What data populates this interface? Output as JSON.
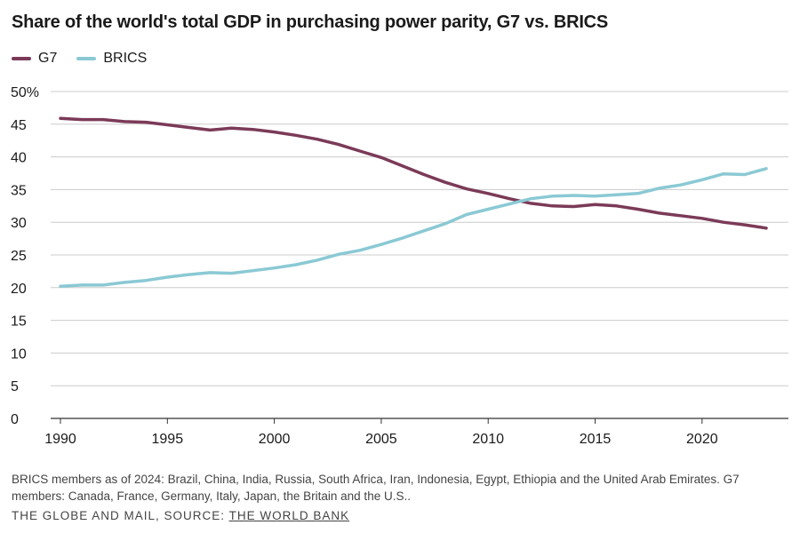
{
  "chart_data": {
    "type": "line",
    "title": "Share of the world's total GDP in purchasing power parity, G7 vs. BRICS",
    "xlabel": "",
    "ylabel": "",
    "xlim": [
      1990,
      2023
    ],
    "ylim": [
      0,
      50
    ],
    "x_ticks": [
      1990,
      1995,
      2000,
      2005,
      2010,
      2015,
      2020
    ],
    "y_ticks": [
      0,
      5,
      10,
      15,
      20,
      25,
      30,
      35,
      40,
      45,
      50
    ],
    "y_tick_labels": [
      "0",
      "5",
      "10",
      "15",
      "20",
      "25",
      "30",
      "35",
      "40",
      "45",
      "50%"
    ],
    "grid": true,
    "legend_position": "top-left",
    "x": [
      1990,
      1991,
      1992,
      1993,
      1994,
      1995,
      1996,
      1997,
      1998,
      1999,
      2000,
      2001,
      2002,
      2003,
      2004,
      2005,
      2006,
      2007,
      2008,
      2009,
      2010,
      2011,
      2012,
      2013,
      2014,
      2015,
      2016,
      2017,
      2018,
      2019,
      2020,
      2021,
      2022,
      2023
    ],
    "series": [
      {
        "name": "G7",
        "color": "#7b3a58",
        "values": [
          45.9,
          45.7,
          45.7,
          45.4,
          45.3,
          44.9,
          44.5,
          44.1,
          44.4,
          44.2,
          43.8,
          43.3,
          42.7,
          41.9,
          40.9,
          39.9,
          38.6,
          37.3,
          36.1,
          35.1,
          34.4,
          33.6,
          32.9,
          32.5,
          32.4,
          32.7,
          32.5,
          32.0,
          31.4,
          31.0,
          30.6,
          30.0,
          29.6,
          29.1
        ]
      },
      {
        "name": "BRICS",
        "color": "#8ac9d4",
        "values": [
          20.2,
          20.4,
          20.4,
          20.8,
          21.1,
          21.6,
          22.0,
          22.3,
          22.2,
          22.6,
          23.0,
          23.5,
          24.2,
          25.1,
          25.7,
          26.6,
          27.6,
          28.7,
          29.8,
          31.2,
          32.0,
          32.8,
          33.6,
          34.0,
          34.1,
          34.0,
          34.2,
          34.4,
          35.2,
          35.7,
          36.5,
          37.4,
          37.3,
          38.2
        ]
      }
    ]
  },
  "note": "BRICS members as of 2024: Brazil, China, India, Russia, South Africa, Iran, Indonesia, Egypt, Ethiopia and the United Arab Emirates. G7 members: Canada, France, Germany, Italy, Japan, the Britain and the U.S..",
  "source": {
    "publisher": "THE GLOBE AND MAIL",
    "separator": ", SOURCE: ",
    "source_name": "THE WORLD BANK"
  }
}
